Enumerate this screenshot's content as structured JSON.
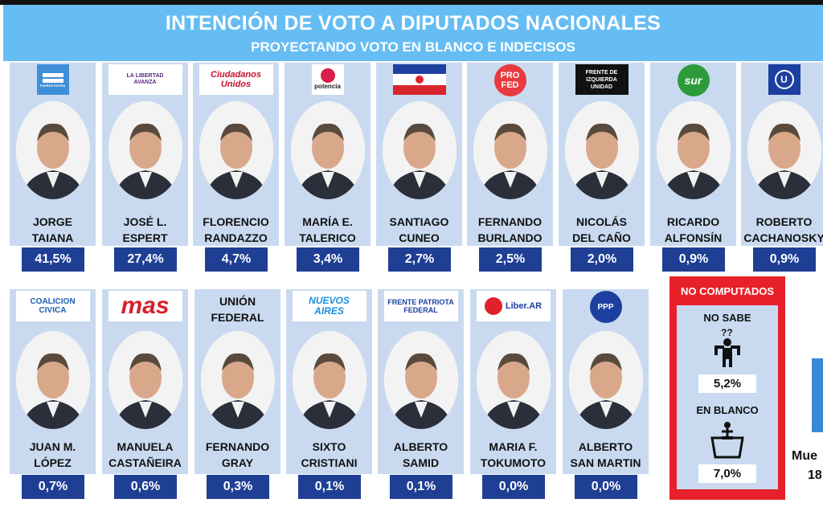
{
  "header": {
    "title": "INTENCIÓN DE VOTO A DIPUTADOS NACIONALES",
    "subtitle": "PROYECTANDO VOTO EN BLANCO E INDECISOS"
  },
  "chart_data": {
    "type": "bar",
    "title": "INTENCIÓN DE VOTO A DIPUTADOS NACIONALES",
    "subtitle": "PROYECTANDO VOTO EN BLANCO E INDECISOS",
    "candidates": [
      {
        "name1": "JORGE",
        "name2": "TAIANA",
        "value": "41,5%",
        "logo": "FUERZA PATRIA",
        "logoStyle": "fp"
      },
      {
        "name1": "JOSÉ L.",
        "name2": "ESPERT",
        "value": "27,4%",
        "logo": "LA LIBERTAD AVANZA",
        "logoStyle": "lla"
      },
      {
        "name1": "FLORENCIO",
        "name2": "RANDAZZO",
        "value": "4,7%",
        "logo": "Ciudadanos Unidos",
        "logoStyle": "cu"
      },
      {
        "name1": "MARÍA E.",
        "name2": "TALERICO",
        "value": "3,4%",
        "logo": "potencia",
        "logoStyle": "pot"
      },
      {
        "name1": "SANTIAGO",
        "name2": "CUNEO",
        "value": "2,7%",
        "logo": "",
        "logoStyle": "flag"
      },
      {
        "name1": "FERNANDO",
        "name2": "BURLANDO",
        "value": "2,5%",
        "logo": "PRO FED",
        "logoStyle": "profed"
      },
      {
        "name1": "NICOLÁS",
        "name2": "DEL CAÑO",
        "value": "2,0%",
        "logo": "FRENTE DE IZQUIERDA UNIDAD",
        "logoStyle": "fit"
      },
      {
        "name1": "RICARDO",
        "name2": "ALFONSÍN",
        "value": "0,9%",
        "logo": "sur",
        "logoStyle": "sur"
      },
      {
        "name1": "ROBERTO",
        "name2": "CACHANOSKY",
        "value": "0,9%",
        "logo": "",
        "logoStyle": "ucede"
      },
      {
        "name1": "JUAN M.",
        "name2": "LÓPEZ",
        "value": "0,7%",
        "logo": "COALICION CIVICA",
        "logoStyle": "cc"
      },
      {
        "name1": "MANUELA",
        "name2": "CASTAÑEIRA",
        "value": "0,6%",
        "logo": "mas",
        "logoStyle": "mas"
      },
      {
        "name1": "FERNANDO",
        "name2": "GRAY",
        "value": "0,3%",
        "logo": "UNIÓN FEDERAL",
        "logoStyle": "uf"
      },
      {
        "name1": "SIXTO",
        "name2": "CRISTIANI",
        "value": "0,1%",
        "logo": "NUEVOS AIRES",
        "logoStyle": "na"
      },
      {
        "name1": "ALBERTO",
        "name2": "SAMID",
        "value": "0,1%",
        "logo": "FRENTE PATRIOTA FEDERAL",
        "logoStyle": "fpf"
      },
      {
        "name1": "MARIA F.",
        "name2": "TOKUMOTO",
        "value": "0,0%",
        "logo": "Liber.AR",
        "logoStyle": "liber"
      },
      {
        "name1": "ALBERTO",
        "name2": "SAN MARTIN",
        "value": "0,0%",
        "logo": "",
        "logoStyle": "ppp"
      }
    ],
    "not_counted": {
      "title": "NO COMPUTADOS",
      "items": [
        {
          "label": "NO SABE",
          "value": "5,2%",
          "icon": "undecided-person-icon"
        },
        {
          "label": "EN BLANCO",
          "value": "7,0%",
          "icon": "ballot-box-icon"
        }
      ]
    }
  },
  "side": {
    "line1": "Mue",
    "line2": "18"
  },
  "colors": {
    "header": "#66bdf3",
    "card": "#c9daf0",
    "value": "#1f3f95",
    "not_counted": "#e8202a"
  }
}
